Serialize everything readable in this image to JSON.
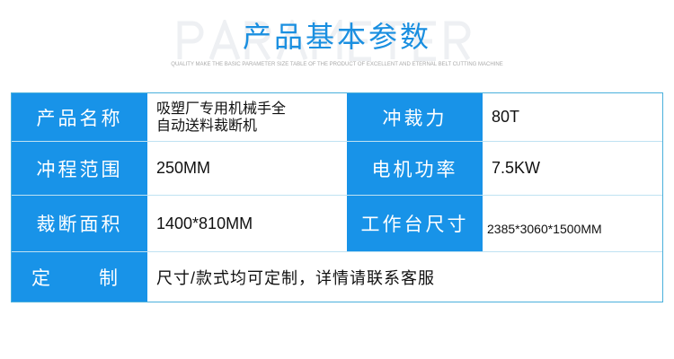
{
  "header": {
    "watermark": "PARAMETER",
    "title": "产品基本参数",
    "subtitle": "QUALITY MAKE THE BASIC PARAMETER SIZE TABLE OF THE PRODUCT OF EXCELLENT AND ETERNAL BELT CUTTING MACHINE"
  },
  "table": {
    "rows": [
      {
        "label1": "产品名称",
        "value1_line1": "吸塑厂专用机械手全",
        "value1_line2": "自动送料裁断机",
        "label2": "冲裁力",
        "value2": "80T"
      },
      {
        "label1": "冲程范围",
        "value1": "250MM",
        "label2": "电机功率",
        "value2": "7.5KW"
      },
      {
        "label1": "裁断面积",
        "value1": "1400*810MM",
        "label2": "工作台尺寸",
        "value2": "2385*3060*1500MM"
      },
      {
        "label1_a": "定",
        "label1_b": "制",
        "value1": "尺寸/款式均可定制，详情请联系客服"
      }
    ]
  },
  "colors": {
    "accent": "#1893e8"
  }
}
